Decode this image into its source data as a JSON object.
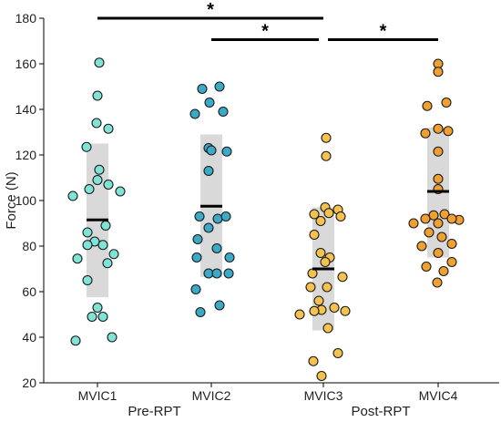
{
  "chart_data": {
    "type": "scatter",
    "ylabel": "Force (N)",
    "xlabel": "",
    "ylim": [
      20,
      180
    ],
    "yticks": [
      20,
      40,
      60,
      80,
      100,
      120,
      140,
      160,
      180
    ],
    "categories": [
      "MVIC1",
      "MVIC2",
      "MVIC3",
      "MVIC4"
    ],
    "group_labels": [
      {
        "text": "Pre-RPT",
        "between": [
          0,
          1
        ]
      },
      {
        "text": "Post-RPT",
        "between": [
          2,
          3
        ]
      }
    ],
    "series": [
      {
        "category": "MVIC1",
        "color": "#7fe3d6",
        "mean": 91.5,
        "sd_range": [
          57.5,
          125
        ],
        "points": [
          {
            "dx": 0.02,
            "y": 160.5
          },
          {
            "dx": 0.0,
            "y": 146
          },
          {
            "dx": -0.01,
            "y": 134
          },
          {
            "dx": 0.12,
            "y": 131.5
          },
          {
            "dx": -0.12,
            "y": 123.5
          },
          {
            "dx": 0.02,
            "y": 113.5
          },
          {
            "dx": 0.0,
            "y": 109
          },
          {
            "dx": 0.12,
            "y": 107
          },
          {
            "dx": -0.09,
            "y": 105
          },
          {
            "dx": 0.25,
            "y": 104
          },
          {
            "dx": -0.27,
            "y": 102
          },
          {
            "dx": 0.09,
            "y": 89
          },
          {
            "dx": -0.11,
            "y": 86
          },
          {
            "dx": -0.03,
            "y": 82
          },
          {
            "dx": -0.11,
            "y": 80.5
          },
          {
            "dx": 0.06,
            "y": 80.5
          },
          {
            "dx": 0.18,
            "y": 76.5
          },
          {
            "dx": -0.22,
            "y": 74.5
          },
          {
            "dx": 0.11,
            "y": 72.5
          },
          {
            "dx": -0.11,
            "y": 65
          },
          {
            "dx": 0.0,
            "y": 53
          },
          {
            "dx": -0.06,
            "y": 49
          },
          {
            "dx": 0.06,
            "y": 49
          },
          {
            "dx": 0.16,
            "y": 40
          },
          {
            "dx": -0.24,
            "y": 38.5
          }
        ]
      },
      {
        "category": "MVIC2",
        "color": "#3aaac8",
        "mean": 97.5,
        "sd_range": [
          66.5,
          129
        ],
        "points": [
          {
            "dx": -0.1,
            "y": 149
          },
          {
            "dx": 0.09,
            "y": 150
          },
          {
            "dx": -0.02,
            "y": 143
          },
          {
            "dx": 0.13,
            "y": 139
          },
          {
            "dx": -0.18,
            "y": 138
          },
          {
            "dx": -0.03,
            "y": 123
          },
          {
            "dx": 0.0,
            "y": 122
          },
          {
            "dx": 0.17,
            "y": 121.5
          },
          {
            "dx": -0.03,
            "y": 113
          },
          {
            "dx": -0.13,
            "y": 93
          },
          {
            "dx": 0.07,
            "y": 92
          },
          {
            "dx": 0.16,
            "y": 93
          },
          {
            "dx": -0.03,
            "y": 88
          },
          {
            "dx": -0.15,
            "y": 83
          },
          {
            "dx": 0.06,
            "y": 79
          },
          {
            "dx": -0.16,
            "y": 75
          },
          {
            "dx": 0.2,
            "y": 75
          },
          {
            "dx": -0.03,
            "y": 68
          },
          {
            "dx": 0.06,
            "y": 68
          },
          {
            "dx": 0.19,
            "y": 68
          },
          {
            "dx": -0.17,
            "y": 61
          },
          {
            "dx": 0.09,
            "y": 54
          },
          {
            "dx": -0.12,
            "y": 51
          }
        ]
      },
      {
        "category": "MVIC3",
        "color": "#f5c24e",
        "mean": 70,
        "sd_range": [
          43,
          97
        ],
        "points": [
          {
            "dx": 0.03,
            "y": 127.5
          },
          {
            "dx": 0.03,
            "y": 119.5
          },
          {
            "dx": 0.02,
            "y": 97
          },
          {
            "dx": 0.06,
            "y": 94.5
          },
          {
            "dx": 0.16,
            "y": 96
          },
          {
            "dx": -0.1,
            "y": 94
          },
          {
            "dx": 0.19,
            "y": 93
          },
          {
            "dx": -0.03,
            "y": 91
          },
          {
            "dx": -0.1,
            "y": 85
          },
          {
            "dx": -0.03,
            "y": 77
          },
          {
            "dx": 0.07,
            "y": 75
          },
          {
            "dx": 0.02,
            "y": 73
          },
          {
            "dx": -0.12,
            "y": 68
          },
          {
            "dx": 0.21,
            "y": 66.5
          },
          {
            "dx": -0.14,
            "y": 62
          },
          {
            "dx": 0.04,
            "y": 62
          },
          {
            "dx": -0.05,
            "y": 56
          },
          {
            "dx": 0.12,
            "y": 53
          },
          {
            "dx": -0.02,
            "y": 52
          },
          {
            "dx": 0.24,
            "y": 51.5
          },
          {
            "dx": -0.26,
            "y": 50
          },
          {
            "dx": -0.1,
            "y": 51.5
          },
          {
            "dx": 0.05,
            "y": 44
          },
          {
            "dx": 0.16,
            "y": 33
          },
          {
            "dx": -0.11,
            "y": 29.5
          },
          {
            "dx": -0.02,
            "y": 23
          }
        ]
      },
      {
        "category": "MVIC4",
        "color": "#f0a030",
        "mean": 104,
        "sd_range": [
          75,
          132
        ],
        "points": [
          {
            "dx": 0.0,
            "y": 160
          },
          {
            "dx": 0.0,
            "y": 156.5
          },
          {
            "dx": -0.12,
            "y": 141.5
          },
          {
            "dx": 0.09,
            "y": 143
          },
          {
            "dx": 0.0,
            "y": 131.5
          },
          {
            "dx": -0.14,
            "y": 129.5
          },
          {
            "dx": 0.11,
            "y": 130.5
          },
          {
            "dx": 0.0,
            "y": 121.5
          },
          {
            "dx": 0.0,
            "y": 109.5
          },
          {
            "dx": 0.0,
            "y": 105
          },
          {
            "dx": -0.05,
            "y": 93.5
          },
          {
            "dx": 0.07,
            "y": 94
          },
          {
            "dx": -0.14,
            "y": 92
          },
          {
            "dx": 0.23,
            "y": 91.5
          },
          {
            "dx": -0.27,
            "y": 90
          },
          {
            "dx": 0.15,
            "y": 92
          },
          {
            "dx": 0.0,
            "y": 90
          },
          {
            "dx": -0.1,
            "y": 86
          },
          {
            "dx": 0.04,
            "y": 84
          },
          {
            "dx": -0.18,
            "y": 80
          },
          {
            "dx": 0.15,
            "y": 81
          },
          {
            "dx": 0.0,
            "y": 77
          },
          {
            "dx": -0.13,
            "y": 71
          },
          {
            "dx": 0.15,
            "y": 73
          },
          {
            "dx": 0.06,
            "y": 69
          },
          {
            "dx": -0.01,
            "y": 64
          }
        ]
      }
    ],
    "significance": [
      {
        "from": 0,
        "to": 2,
        "y": 180,
        "label": "*"
      },
      {
        "from": 1,
        "to": 2,
        "y": 171,
        "label": "*"
      },
      {
        "from": 2,
        "to": 3,
        "y": 171,
        "label": "*"
      }
    ]
  }
}
